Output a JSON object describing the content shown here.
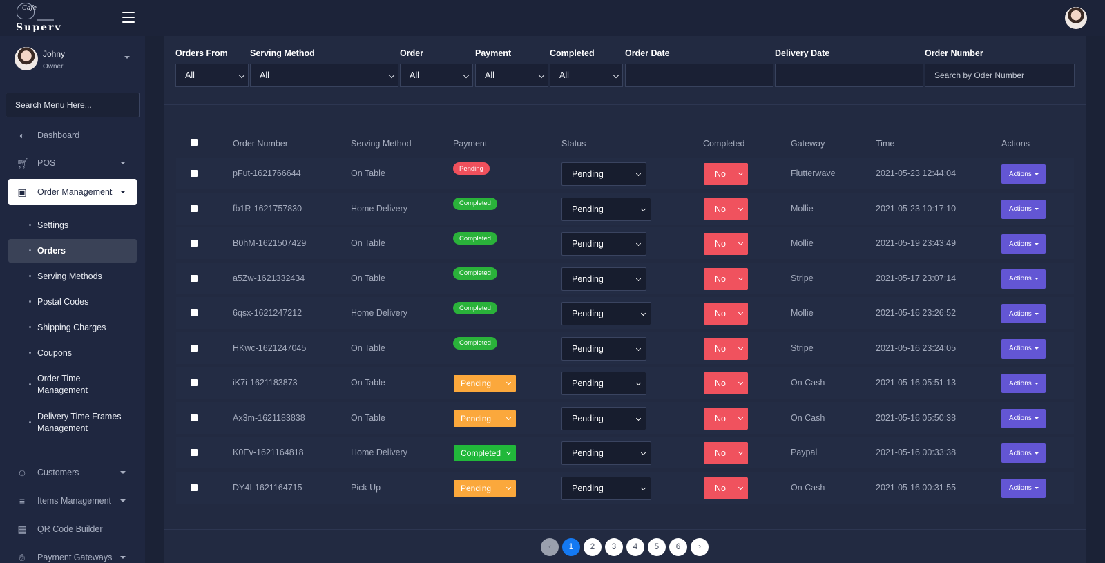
{
  "brand": {
    "script": "Cafe",
    "word": "Superv"
  },
  "user": {
    "name": "Johny",
    "role": "Owner"
  },
  "menu_search": {
    "placeholder": "Search Menu Here..."
  },
  "nav": {
    "dashboard": "Dashboard",
    "pos": "POS",
    "order_management": "Order Management",
    "customers": "Customers",
    "items_management": "Items Management",
    "qr_code_builder": "QR Code Builder",
    "payment_gateways": "Payment Gateways"
  },
  "sub_nav": [
    "Settings",
    "Orders",
    "Serving Methods",
    "Postal Codes",
    "Shipping Charges",
    "Coupons",
    "Order Time Management",
    "Delivery Time Frames Management"
  ],
  "filters": {
    "orders_from": {
      "label": "Orders From",
      "value": "All"
    },
    "serving_method": {
      "label": "Serving Method",
      "value": "All"
    },
    "order": {
      "label": "Order",
      "value": "All"
    },
    "payment": {
      "label": "Payment",
      "value": "All"
    },
    "completed": {
      "label": "Completed",
      "value": "All"
    },
    "order_date": {
      "label": "Order Date",
      "value": ""
    },
    "delivery_date": {
      "label": "Delivery Date",
      "value": ""
    },
    "order_number": {
      "label": "Order Number",
      "placeholder": "Search by Oder Number"
    }
  },
  "table": {
    "headers": {
      "order_number": "Order Number",
      "serving_method": "Serving Method",
      "payment": "Payment",
      "status": "Status",
      "completed": "Completed",
      "gateway": "Gateway",
      "time": "Time",
      "actions": "Actions"
    },
    "rows": [
      {
        "order": "pFut-1621766644",
        "method": "On Table",
        "payment": "Pending",
        "payment_style": "pill",
        "status": "Pending",
        "completed": "No",
        "gateway": "Flutterwave",
        "time": "2021-05-23 12:44:04",
        "actions": "Actions"
      },
      {
        "order": "fb1R-1621757830",
        "method": "Home Delivery",
        "payment": "Completed",
        "payment_style": "pill",
        "status": "Pending",
        "completed": "No",
        "gateway": "Mollie",
        "time": "2021-05-23 10:17:10",
        "actions": "Actions"
      },
      {
        "order": "B0hM-1621507429",
        "method": "On Table",
        "payment": "Completed",
        "payment_style": "pill",
        "status": "Pending",
        "completed": "No",
        "gateway": "Mollie",
        "time": "2021-05-19 23:43:49",
        "actions": "Actions"
      },
      {
        "order": "a5Zw-1621332434",
        "method": "On Table",
        "payment": "Completed",
        "payment_style": "pill",
        "status": "Pending",
        "completed": "No",
        "gateway": "Stripe",
        "time": "2021-05-17 23:07:14",
        "actions": "Actions"
      },
      {
        "order": "6qsx-1621247212",
        "method": "Home Delivery",
        "payment": "Completed",
        "payment_style": "pill",
        "status": "Pending",
        "completed": "No",
        "gateway": "Mollie",
        "time": "2021-05-16 23:26:52",
        "actions": "Actions"
      },
      {
        "order": "HKwc-1621247045",
        "method": "On Table",
        "payment": "Completed",
        "payment_style": "pill",
        "status": "Pending",
        "completed": "No",
        "gateway": "Stripe",
        "time": "2021-05-16 23:24:05",
        "actions": "Actions"
      },
      {
        "order": "iK7i-1621183873",
        "method": "On Table",
        "payment": "Pending",
        "payment_style": "dropdown",
        "status": "Pending",
        "completed": "No",
        "gateway": "On Cash",
        "time": "2021-05-16 05:51:13",
        "actions": "Actions"
      },
      {
        "order": "Ax3m-1621183838",
        "method": "On Table",
        "payment": "Pending",
        "payment_style": "dropdown",
        "status": "Pending",
        "completed": "No",
        "gateway": "On Cash",
        "time": "2021-05-16 05:50:38",
        "actions": "Actions"
      },
      {
        "order": "K0Ev-1621164818",
        "method": "Home Delivery",
        "payment": "Completed",
        "payment_style": "dropdown",
        "status": "Pending",
        "completed": "No",
        "gateway": "Paypal",
        "time": "2021-05-16 00:33:38",
        "actions": "Actions"
      },
      {
        "order": "DY4I-1621164715",
        "method": "Pick Up",
        "payment": "Pending",
        "payment_style": "dropdown",
        "status": "Pending",
        "completed": "No",
        "gateway": "On Cash",
        "time": "2021-05-16 00:31:55",
        "actions": "Actions"
      }
    ]
  },
  "pagination": {
    "prev": "‹",
    "pages": [
      "1",
      "2",
      "3",
      "4",
      "5",
      "6"
    ],
    "next": "›",
    "current": "1"
  },
  "colors": {
    "accent": "#1479f2",
    "action": "#6356d4",
    "danger": "#f0525e",
    "success": "#2ab23a",
    "warning": "#fba83c"
  }
}
